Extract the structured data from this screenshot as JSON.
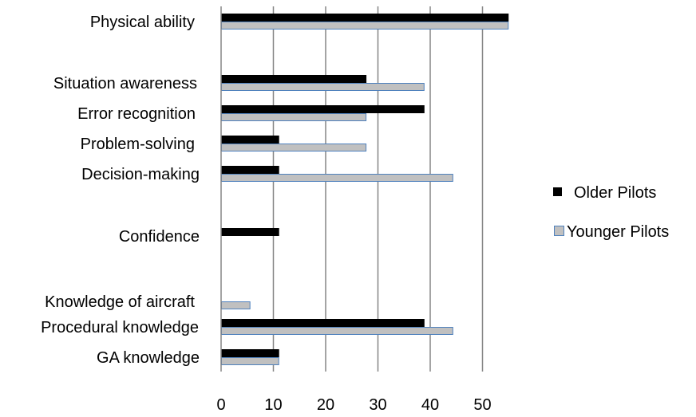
{
  "chart_data": {
    "type": "bar",
    "orientation": "horizontal",
    "title": "",
    "xlabel": "",
    "ylabel": "",
    "xlim": [
      0,
      55
    ],
    "xticks": [
      0,
      10,
      20,
      30,
      40,
      50
    ],
    "grid": "vertical",
    "legend_position": "right",
    "categories": [
      "Physical ability",
      "Situation awareness",
      "Error recognition",
      "Problem-solving",
      "Decision-making",
      "Confidence",
      "Knowledge of aircraft",
      "Procedural knowledge",
      "GA  knowledge"
    ],
    "series": [
      {
        "name": "Older Pilots",
        "color": "#000000",
        "values": [
          55.6,
          27.8,
          38.9,
          11.1,
          11.1,
          11.1,
          0,
          38.9,
          11.1
        ]
      },
      {
        "name": "Younger Pilots",
        "color": "#c0c0c0",
        "border": "#4f81bd",
        "values": [
          55.6,
          38.9,
          27.8,
          27.8,
          44.4,
          0,
          5.6,
          44.4,
          11.1
        ]
      }
    ]
  }
}
